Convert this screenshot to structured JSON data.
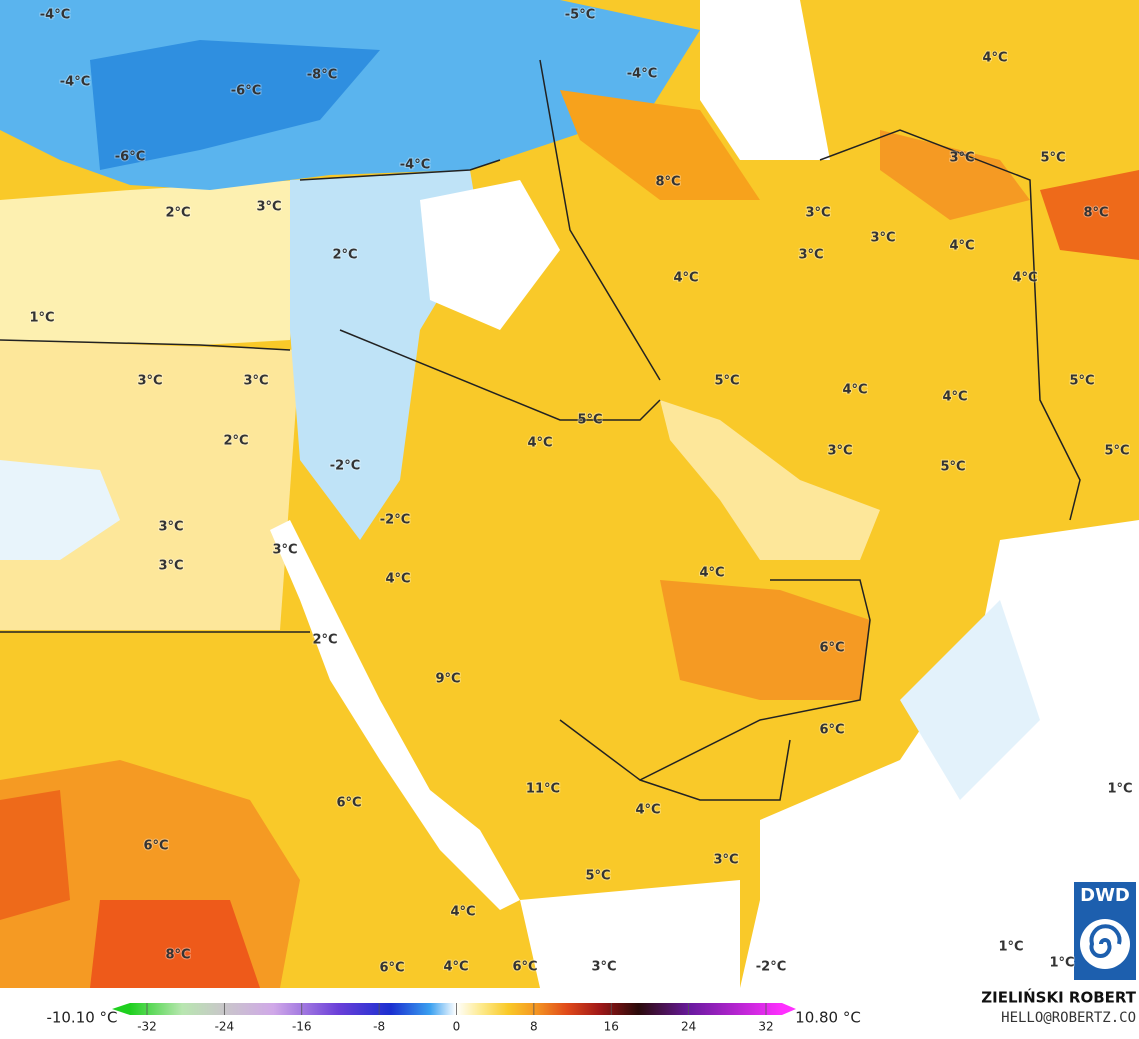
{
  "map": {
    "labels": [
      "-4°C",
      "-5°C",
      "4°C",
      "-8°C",
      "-4°C",
      "-6°C",
      "-4°C",
      "-6°C",
      "-4°C",
      "3°C",
      "5°C",
      "8°C",
      "8°C",
      "2°C",
      "3°C",
      "3°C",
      "3°C",
      "4°C",
      "2°C",
      "3°C",
      "4°C",
      "4°C",
      "1°C",
      "3°C",
      "3°C",
      "5°C",
      "4°C",
      "5°C",
      "4°C",
      "5°C",
      "4°C",
      "3°C",
      "2°C",
      "5°C",
      "-2°C",
      "5°C",
      "-2°C",
      "3°C",
      "3°C",
      "3°C",
      "4°C",
      "4°C",
      "2°C",
      "6°C",
      "9°C",
      "6°C",
      "11°C",
      "1°C",
      "6°C",
      "4°C",
      "6°C",
      "3°C",
      "5°C",
      "4°C",
      "1°C",
      "8°C",
      "6°C",
      "4°C",
      "6°C",
      "3°C",
      "-2°C",
      "1°C"
    ]
  },
  "legend": {
    "min_label": "-10.10 °C",
    "max_label": "10.80 °C",
    "ticks": [
      -32,
      -24,
      -16,
      -8,
      0,
      8,
      16,
      24,
      32
    ]
  },
  "credits": {
    "author": "ZIELIŃSKI ROBERT",
    "email": "HELLO@ROBERTZ.CO",
    "logo": "DWD"
  }
}
